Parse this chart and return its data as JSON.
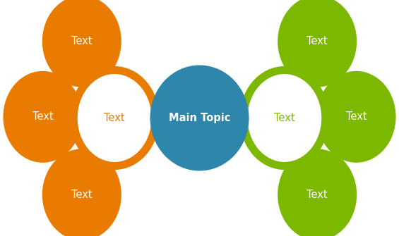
{
  "bg_color": "#ffffff",
  "fig_w": 5.65,
  "fig_h": 3.35,
  "dpi": 100,
  "main_topic": {
    "xf": 0.5,
    "yf": 0.5,
    "rw": 70,
    "rh": 75,
    "fill": "#2e86ab",
    "text": "Main Topic",
    "text_color": "#ffffff",
    "fontsize": 10.5,
    "bold": true
  },
  "left_hub": {
    "xf": 0.287,
    "yf": 0.5,
    "rw": 58,
    "rh": 68,
    "fill": "#ffffff",
    "edgecolor": "#e87b00",
    "linewidth": 8,
    "text": "Text",
    "text_color": "#e87b00",
    "fontsize": 10.5
  },
  "right_hub": {
    "xf": 0.713,
    "yf": 0.5,
    "rw": 58,
    "rh": 68,
    "fill": "#ffffff",
    "edgecolor": "#7db800",
    "linewidth": 8,
    "text": "Text",
    "text_color": "#7db800",
    "fontsize": 10.5
  },
  "orange_color": "#e87b00",
  "green_color": "#7db800",
  "blue_color": "#2e86ab",
  "left_satellites": [
    {
      "xf": 0.107,
      "yf": 0.505,
      "label": "Text"
    },
    {
      "xf": 0.205,
      "yf": 0.175,
      "label": "Text"
    },
    {
      "xf": 0.205,
      "yf": 0.825,
      "label": "Text"
    }
  ],
  "right_satellites": [
    {
      "xf": 0.893,
      "yf": 0.505,
      "label": "Text"
    },
    {
      "xf": 0.795,
      "yf": 0.175,
      "label": "Text"
    },
    {
      "xf": 0.795,
      "yf": 0.825,
      "label": "Text"
    }
  ],
  "sat_rw": 56,
  "sat_rh": 65,
  "text_color_white": "#ffffff",
  "sat_fontsize": 10.5,
  "line_color": "#111111",
  "line_width": 1.3
}
